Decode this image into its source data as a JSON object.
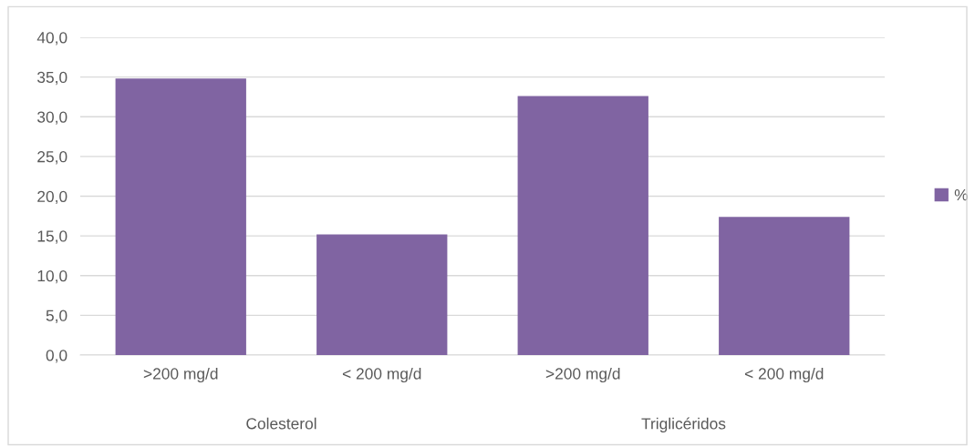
{
  "chart_data": {
    "type": "bar",
    "categories": [
      ">200 mg/d",
      "< 200 mg/d",
      ">200 mg/d",
      "< 200 mg/d"
    ],
    "series": [
      {
        "name": "%",
        "color": "#8064a2",
        "values": [
          34.8,
          15.2,
          32.6,
          17.4
        ]
      }
    ],
    "ylim": [
      0,
      40
    ],
    "yticks": [
      {
        "value": 0,
        "label": "0,0"
      },
      {
        "value": 5,
        "label": "5,0"
      },
      {
        "value": 10,
        "label": "10,0"
      },
      {
        "value": 15,
        "label": "15,0"
      },
      {
        "value": 20,
        "label": "20,0"
      },
      {
        "value": 25,
        "label": "25,0"
      },
      {
        "value": 30,
        "label": "30,0"
      },
      {
        "value": 35,
        "label": "35,0"
      },
      {
        "value": 40,
        "label": "40,0"
      }
    ],
    "grid": "y",
    "legend": "right",
    "annotations": [
      "Colesterol",
      "Triglicéridos"
    ]
  }
}
